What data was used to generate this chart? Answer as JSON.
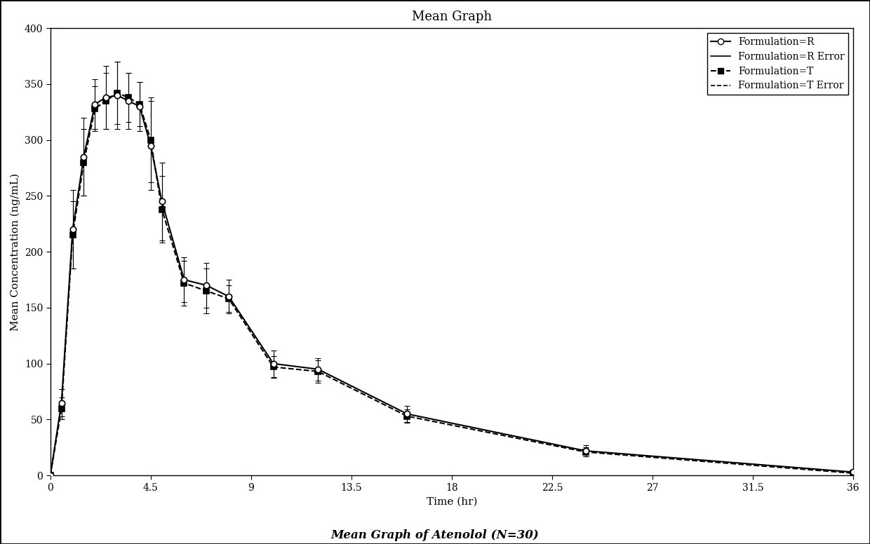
{
  "title": "Mean Graph",
  "subtitle": "Mean Graph of Atenolol (N=30)",
  "xlabel": "Time (hr)",
  "ylabel": "Mean Concentration (ng/mL)",
  "xlim": [
    0,
    36
  ],
  "ylim": [
    0,
    400
  ],
  "xticks": [
    0,
    4.5,
    9,
    13.5,
    18,
    22.5,
    27,
    31.5,
    36
  ],
  "yticks": [
    0,
    50,
    100,
    150,
    200,
    250,
    300,
    350,
    400
  ],
  "R_x": [
    0,
    0.5,
    1,
    1.5,
    2,
    2.5,
    3,
    3.5,
    4,
    4.5,
    5,
    6,
    7,
    8,
    10,
    12,
    16,
    24,
    36
  ],
  "R_y": [
    0,
    65,
    220,
    285,
    332,
    338,
    340,
    335,
    330,
    295,
    245,
    175,
    170,
    160,
    100,
    95,
    55,
    22,
    3
  ],
  "R_err": [
    0,
    12,
    35,
    35,
    22,
    28,
    30,
    25,
    22,
    40,
    35,
    20,
    20,
    15,
    12,
    10,
    7,
    5,
    2
  ],
  "T_x": [
    0,
    0.5,
    1,
    1.5,
    2,
    2.5,
    3,
    3.5,
    4,
    4.5,
    5,
    6,
    7,
    8,
    10,
    12,
    16,
    24,
    36
  ],
  "T_y": [
    0,
    60,
    215,
    280,
    328,
    335,
    342,
    338,
    332,
    300,
    238,
    172,
    165,
    158,
    97,
    93,
    53,
    21,
    2
  ],
  "T_err": [
    0,
    10,
    30,
    30,
    20,
    25,
    28,
    22,
    20,
    38,
    30,
    20,
    20,
    12,
    10,
    10,
    6,
    4,
    2
  ],
  "bg_color": "#ffffff",
  "legend_entries": [
    "Formulation=R",
    "Formulation=R Error",
    "Formulation=T",
    "Formulation=T Error"
  ]
}
